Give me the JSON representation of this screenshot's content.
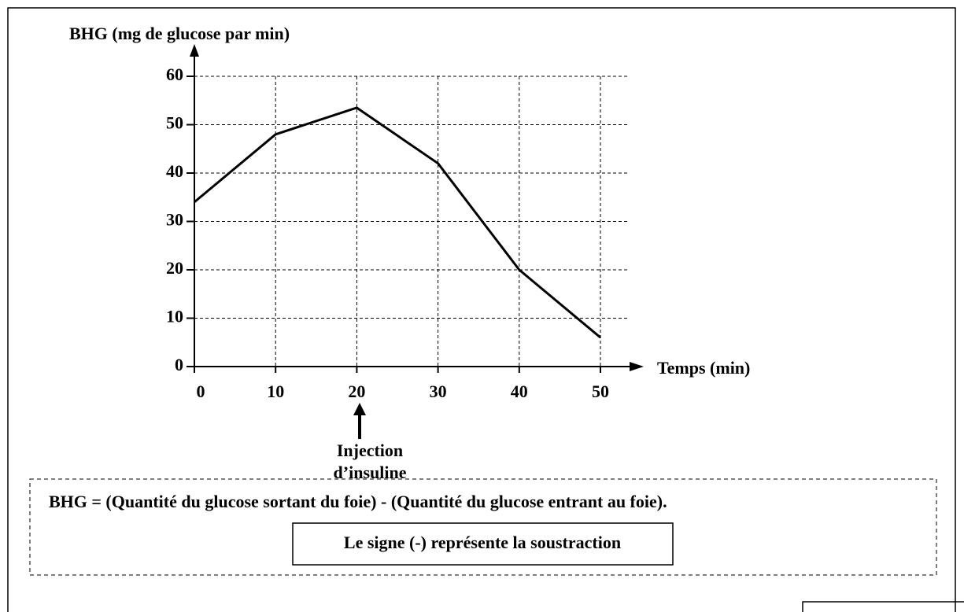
{
  "chart_data": {
    "type": "line",
    "y_label": "BHG (mg de glucose  par min)",
    "x_label": "Temps (min)",
    "x": [
      0,
      10,
      20,
      30,
      40,
      50
    ],
    "series": [
      {
        "color": "#000000",
        "values": [
          34,
          48,
          53.5,
          42,
          20,
          6
        ]
      }
    ],
    "xlim": [
      0,
      50
    ],
    "xticks": [
      0,
      10,
      20,
      30,
      40,
      50
    ],
    "ylim": [
      0,
      60
    ],
    "yticks": [
      0,
      10,
      20,
      30,
      40,
      50,
      60
    ],
    "grid": true,
    "annotation": [
      "Injection",
      "d’insuline"
    ],
    "formula": "BHG =  (Quantité du glucose sortant du foie) -  (Quantité du glucose entrant au foie).",
    "note": "Le signe (-) représente la soustraction"
  }
}
